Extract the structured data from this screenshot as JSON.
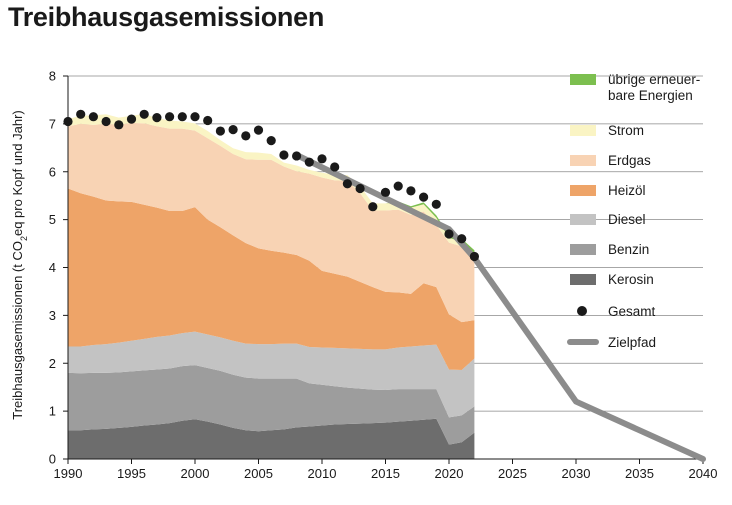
{
  "title": "Treibhausgasemissionen",
  "chart_data": {
    "type": "area",
    "title": "Treibhausgasemissionen",
    "ylabel_parts": [
      "Treibhausgasemissionen (t CO",
      "2",
      "eq pro Kopf und Jahr)"
    ],
    "xlabel": "",
    "xlim": [
      1990,
      2040
    ],
    "ylim": [
      0,
      8
    ],
    "x_ticks": [
      "1990",
      "1995",
      "2000",
      "2005",
      "2010",
      "2015",
      "2020",
      "2025",
      "2030",
      "2035",
      "2040"
    ],
    "y_ticks": [
      "0",
      "1",
      "2",
      "3",
      "4",
      "5",
      "6",
      "7",
      "8"
    ],
    "grid": "horizontal",
    "legend_position": "right",
    "x": [
      1990,
      1991,
      1992,
      1993,
      1994,
      1995,
      1996,
      1997,
      1998,
      1999,
      2000,
      2001,
      2002,
      2003,
      2004,
      2005,
      2006,
      2007,
      2008,
      2009,
      2010,
      2011,
      2012,
      2013,
      2014,
      2015,
      2016,
      2017,
      2018,
      2019,
      2020,
      2021,
      2022
    ],
    "series": [
      {
        "name": "Kerosin",
        "color": "#6d6d6d",
        "values": [
          0.6,
          0.6,
          0.62,
          0.63,
          0.65,
          0.67,
          0.7,
          0.72,
          0.75,
          0.8,
          0.83,
          0.78,
          0.72,
          0.65,
          0.6,
          0.58,
          0.6,
          0.62,
          0.66,
          0.68,
          0.7,
          0.72,
          0.73,
          0.74,
          0.75,
          0.76,
          0.78,
          0.8,
          0.82,
          0.84,
          0.3,
          0.35,
          0.55
        ]
      },
      {
        "name": "Benzin",
        "color": "#9d9d9d",
        "values": [
          1.2,
          1.19,
          1.18,
          1.17,
          1.16,
          1.16,
          1.15,
          1.15,
          1.14,
          1.14,
          1.13,
          1.12,
          1.12,
          1.11,
          1.1,
          1.1,
          1.08,
          1.06,
          1.02,
          0.9,
          0.85,
          0.8,
          0.76,
          0.73,
          0.7,
          0.68,
          0.68,
          0.66,
          0.64,
          0.62,
          0.57,
          0.56,
          0.55
        ]
      },
      {
        "name": "Diesel",
        "color": "#c3c3c3",
        "values": [
          0.55,
          0.56,
          0.58,
          0.6,
          0.62,
          0.64,
          0.66,
          0.68,
          0.69,
          0.69,
          0.7,
          0.7,
          0.7,
          0.71,
          0.71,
          0.72,
          0.72,
          0.73,
          0.73,
          0.76,
          0.78,
          0.8,
          0.82,
          0.83,
          0.84,
          0.85,
          0.87,
          0.89,
          0.91,
          0.93,
          1.0,
          0.95,
          1.0
        ]
      },
      {
        "name": "Heizöl",
        "color": "#eea468",
        "values": [
          3.3,
          3.2,
          3.1,
          3.0,
          2.95,
          2.9,
          2.8,
          2.7,
          2.6,
          2.55,
          2.6,
          2.4,
          2.3,
          2.2,
          2.1,
          2.0,
          1.95,
          1.9,
          1.85,
          1.8,
          1.6,
          1.55,
          1.5,
          1.4,
          1.3,
          1.2,
          1.15,
          1.1,
          1.3,
          1.2,
          1.15,
          1.0,
          0.8
        ]
      },
      {
        "name": "Erdgas",
        "color": "#f8d3b4",
        "values": [
          1.3,
          1.45,
          1.5,
          1.6,
          1.6,
          1.65,
          1.7,
          1.7,
          1.72,
          1.72,
          1.6,
          1.7,
          1.7,
          1.7,
          1.75,
          1.85,
          1.9,
          1.8,
          1.75,
          1.82,
          1.95,
          1.95,
          2.0,
          1.85,
          1.6,
          1.7,
          1.73,
          1.65,
          1.5,
          1.3,
          1.5,
          1.58,
          1.3
        ]
      },
      {
        "name": "Strom",
        "color": "#faf4c4",
        "values": [
          0.15,
          0.17,
          0.2,
          0.2,
          0.15,
          0.15,
          0.2,
          0.17,
          0.17,
          0.15,
          0.15,
          0.15,
          0.12,
          0.12,
          0.15,
          0.15,
          0.12,
          0.08,
          0.12,
          0.08,
          0.1,
          0.12,
          0.12,
          0.15,
          0.15,
          0.15,
          0.15,
          0.15,
          0.15,
          0.15,
          0.1,
          0.1,
          0.1
        ]
      },
      {
        "name": "übrige erneuer-\nbare Energien",
        "color": "#7cbf4f",
        "values": [
          0.0,
          0.0,
          0.0,
          0.0,
          0.0,
          0.0,
          0.0,
          0.0,
          0.0,
          0.0,
          0.0,
          0.0,
          0.0,
          0.0,
          0.0,
          0.0,
          0.0,
          0.0,
          0.0,
          0.0,
          0.0,
          0.0,
          0.0,
          0.0,
          0.0,
          0.0,
          0.02,
          0.03,
          0.04,
          0.05,
          0.05,
          0.06,
          0.06
        ]
      }
    ],
    "gesamt": {
      "name": "Gesamt",
      "x": [
        1990,
        1991,
        1992,
        1993,
        1994,
        1995,
        1996,
        1997,
        1998,
        1999,
        2000,
        2001,
        2002,
        2003,
        2004,
        2005,
        2006,
        2007,
        2008,
        2009,
        2010,
        2011,
        2012,
        2013,
        2014,
        2015,
        2016,
        2017,
        2018,
        2019,
        2020,
        2021,
        2022
      ],
      "values": [
        7.05,
        7.2,
        7.15,
        7.05,
        6.98,
        7.1,
        7.2,
        7.13,
        7.15,
        7.15,
        7.15,
        7.07,
        6.85,
        6.88,
        6.75,
        6.87,
        6.65,
        6.35,
        6.33,
        6.2,
        6.27,
        6.1,
        5.75,
        5.65,
        5.27,
        5.57,
        5.7,
        5.6,
        5.47,
        5.32,
        4.7,
        4.6,
        4.23
      ],
      "color": "#1a1a1a"
    },
    "zielpfad": {
      "name": "Zielpfad",
      "x": [
        2008,
        2020,
        2022,
        2030,
        2040
      ],
      "values": [
        6.35,
        4.8,
        4.2,
        1.2,
        0.0
      ],
      "color": "#8c8c8c"
    },
    "legend_order": [
      "übrige erneuer-\nbare Energien",
      "Strom",
      "Erdgas",
      "Heizöl",
      "Diesel",
      "Benzin",
      "Kerosin",
      "Gesamt",
      "Zielpfad"
    ]
  }
}
